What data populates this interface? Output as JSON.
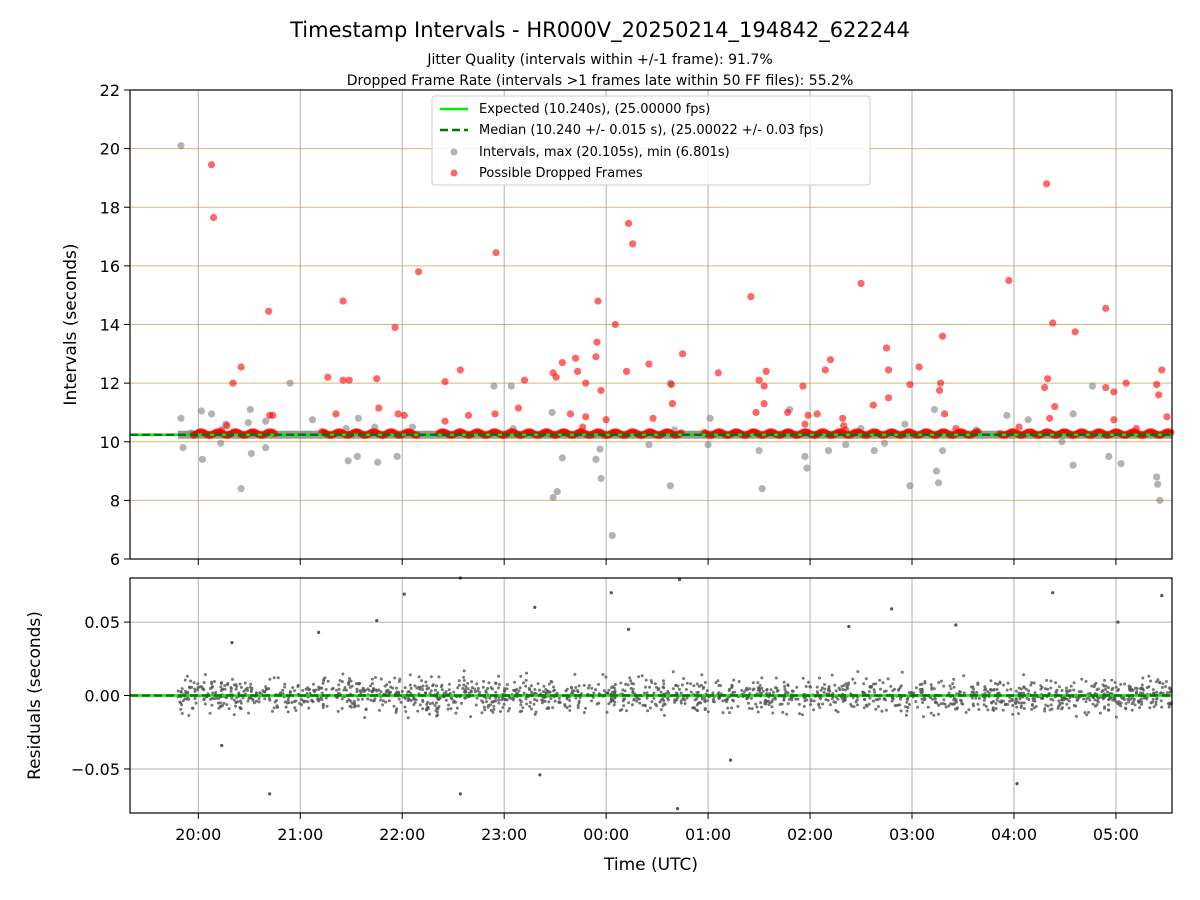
{
  "figure": {
    "title": "Timestamp Intervals - HR000V_20250214_194842_622244",
    "subtitle1": "Jitter Quality (intervals within +/-1 frame): 91.7%",
    "subtitle2": "Dropped Frame Rate (intervals >1 frames late within 50 FF files): 55.2%"
  },
  "colors": {
    "expected": "#00ee00",
    "median": "#007700",
    "intervals": "#808080",
    "dropped": "#ff0000",
    "hgrid": "#c8a850",
    "vgrid": "#b0b0b0",
    "residuals": "#555555"
  },
  "legend": {
    "expected": "Expected (10.240s), (25.00000 fps)",
    "median": "Median (10.240 +/- 0.015 s), (25.00022 +/- 0.03 fps)",
    "intervals": "Intervals, max (20.105s), min (6.801s)",
    "dropped": "Possible Dropped Frames"
  },
  "chart_data": [
    {
      "type": "scatter",
      "ylabel": "Intervals (seconds)",
      "ylim": [
        6,
        22
      ],
      "yticks": [
        "6",
        "8",
        "10",
        "12",
        "14",
        "16",
        "18",
        "20",
        "22"
      ],
      "xlim_hours": [
        19.33,
        29.55
      ],
      "xtick_hours": [
        20,
        21,
        22,
        23,
        24,
        25,
        26,
        27,
        28,
        29
      ],
      "grid": true,
      "legend_placement": "top-center",
      "expected": 10.24,
      "median": 10.24,
      "series": [
        {
          "name": "Intervals, max (20.105s), min (6.801s)",
          "points": [
            [
              19.83,
              20.1
            ],
            [
              19.83,
              10.8
            ],
            [
              19.85,
              9.8
            ],
            [
              19.93,
              10.3
            ],
            [
              20.03,
              11.05
            ],
            [
              20.04,
              9.4
            ],
            [
              20.13,
              10.95
            ],
            [
              20.22,
              9.95
            ],
            [
              20.27,
              10.6
            ],
            [
              20.42,
              8.4
            ],
            [
              20.49,
              10.65
            ],
            [
              20.51,
              11.1
            ],
            [
              20.52,
              9.6
            ],
            [
              20.66,
              10.7
            ],
            [
              20.66,
              9.8
            ],
            [
              20.9,
              12.0
            ],
            [
              21.12,
              10.75
            ],
            [
              21.45,
              10.45
            ],
            [
              21.47,
              9.35
            ],
            [
              21.57,
              10.8
            ],
            [
              21.56,
              9.5
            ],
            [
              21.73,
              10.5
            ],
            [
              21.76,
              9.3
            ],
            [
              21.95,
              9.5
            ],
            [
              22.1,
              10.5
            ],
            [
              22.9,
              11.9
            ],
            [
              23.07,
              11.9
            ],
            [
              23.09,
              10.45
            ],
            [
              23.47,
              11.0
            ],
            [
              23.48,
              8.1
            ],
            [
              23.52,
              8.3
            ],
            [
              23.57,
              9.45
            ],
            [
              23.9,
              9.4
            ],
            [
              23.95,
              8.75
            ],
            [
              23.94,
              9.75
            ],
            [
              24.06,
              6.8
            ],
            [
              24.42,
              9.9
            ],
            [
              24.63,
              12.0
            ],
            [
              24.63,
              8.5
            ],
            [
              24.67,
              10.4
            ],
            [
              25.02,
              10.8
            ],
            [
              25.0,
              9.9
            ],
            [
              25.5,
              9.7
            ],
            [
              25.53,
              8.4
            ],
            [
              25.8,
              11.1
            ],
            [
              25.95,
              9.5
            ],
            [
              25.97,
              9.1
            ],
            [
              26.18,
              9.7
            ],
            [
              26.27,
              10.3
            ],
            [
              26.35,
              9.9
            ],
            [
              26.5,
              10.45
            ],
            [
              26.63,
              9.7
            ],
            [
              26.73,
              9.95
            ],
            [
              26.93,
              10.6
            ],
            [
              26.98,
              8.5
            ],
            [
              27.22,
              11.1
            ],
            [
              27.24,
              9.0
            ],
            [
              27.26,
              8.6
            ],
            [
              27.3,
              9.7
            ],
            [
              27.63,
              10.4
            ],
            [
              27.93,
              10.9
            ],
            [
              28.14,
              10.75
            ],
            [
              28.47,
              10.0
            ],
            [
              28.58,
              10.95
            ],
            [
              28.58,
              9.2
            ],
            [
              28.77,
              11.9
            ],
            [
              28.93,
              9.5
            ],
            [
              29.05,
              9.25
            ],
            [
              29.4,
              8.8
            ],
            [
              29.41,
              8.55
            ],
            [
              29.43,
              8.0
            ]
          ]
        },
        {
          "name": "Possible Dropped Frames",
          "points": [
            [
              20.13,
              19.45
            ],
            [
              20.15,
              17.65
            ],
            [
              20.23,
              10.4
            ],
            [
              20.28,
              10.55
            ],
            [
              20.34,
              12.0
            ],
            [
              20.42,
              12.55
            ],
            [
              20.69,
              14.45
            ],
            [
              20.7,
              10.9
            ],
            [
              20.73,
              10.9
            ],
            [
              21.27,
              12.2
            ],
            [
              21.35,
              10.95
            ],
            [
              21.42,
              14.8
            ],
            [
              21.42,
              12.1
            ],
            [
              21.48,
              12.1
            ],
            [
              21.75,
              12.15
            ],
            [
              21.77,
              11.15
            ],
            [
              21.93,
              13.9
            ],
            [
              21.96,
              10.95
            ],
            [
              22.02,
              10.9
            ],
            [
              22.16,
              15.8
            ],
            [
              22.42,
              12.05
            ],
            [
              22.42,
              10.7
            ],
            [
              22.57,
              12.45
            ],
            [
              22.65,
              10.9
            ],
            [
              22.91,
              10.95
            ],
            [
              22.92,
              16.45
            ],
            [
              23.14,
              11.15
            ],
            [
              23.2,
              12.1
            ],
            [
              23.48,
              12.35
            ],
            [
              23.51,
              12.2
            ],
            [
              23.57,
              12.7
            ],
            [
              23.65,
              10.95
            ],
            [
              23.7,
              12.85
            ],
            [
              23.72,
              12.4
            ],
            [
              23.77,
              10.5
            ],
            [
              23.8,
              12.0
            ],
            [
              23.8,
              10.85
            ],
            [
              23.9,
              12.9
            ],
            [
              23.91,
              13.4
            ],
            [
              23.92,
              14.8
            ],
            [
              23.95,
              11.75
            ],
            [
              24.0,
              10.75
            ],
            [
              24.09,
              14.0
            ],
            [
              24.22,
              17.45
            ],
            [
              24.2,
              12.4
            ],
            [
              24.26,
              16.75
            ],
            [
              24.42,
              12.65
            ],
            [
              24.46,
              10.8
            ],
            [
              24.64,
              11.95
            ],
            [
              24.65,
              11.3
            ],
            [
              24.75,
              13.0
            ],
            [
              25.1,
              12.35
            ],
            [
              25.42,
              14.95
            ],
            [
              25.47,
              11.0
            ],
            [
              25.5,
              12.1
            ],
            [
              25.55,
              11.9
            ],
            [
              25.55,
              11.3
            ],
            [
              25.57,
              12.4
            ],
            [
              25.78,
              11.0
            ],
            [
              25.93,
              11.9
            ],
            [
              25.95,
              10.6
            ],
            [
              25.98,
              10.9
            ],
            [
              26.07,
              10.95
            ],
            [
              26.15,
              12.45
            ],
            [
              26.2,
              12.8
            ],
            [
              26.32,
              10.8
            ],
            [
              26.33,
              10.55
            ],
            [
              26.35,
              10.4
            ],
            [
              26.5,
              15.4
            ],
            [
              26.62,
              11.25
            ],
            [
              26.75,
              13.2
            ],
            [
              26.77,
              12.45
            ],
            [
              26.77,
              11.5
            ],
            [
              26.98,
              11.95
            ],
            [
              27.07,
              12.55
            ],
            [
              27.27,
              11.75
            ],
            [
              27.28,
              12.0
            ],
            [
              27.3,
              13.6
            ],
            [
              27.32,
              10.95
            ],
            [
              27.43,
              10.45
            ],
            [
              27.95,
              15.5
            ],
            [
              28.05,
              10.5
            ],
            [
              28.3,
              11.85
            ],
            [
              28.33,
              12.15
            ],
            [
              28.32,
              18.8
            ],
            [
              28.35,
              10.8
            ],
            [
              28.38,
              14.05
            ],
            [
              28.4,
              11.2
            ],
            [
              28.6,
              13.75
            ],
            [
              28.9,
              14.55
            ],
            [
              28.9,
              11.85
            ],
            [
              28.98,
              11.7
            ],
            [
              28.98,
              10.75
            ],
            [
              29.1,
              12.0
            ],
            [
              29.2,
              10.45
            ],
            [
              29.4,
              11.95
            ],
            [
              29.42,
              11.6
            ],
            [
              29.45,
              12.45
            ],
            [
              29.5,
              10.85
            ]
          ]
        }
      ]
    },
    {
      "type": "scatter",
      "xlabel": "Time (UTC)",
      "ylabel": "Residuals (seconds)",
      "ylim": [
        -0.08,
        0.08
      ],
      "yticks": [
        "−0.05",
        "0.00",
        "0.05"
      ],
      "ytick_values": [
        -0.05,
        0.0,
        0.05
      ],
      "xticklabels": [
        "20:00",
        "21:00",
        "22:00",
        "23:00",
        "00:00",
        "01:00",
        "02:00",
        "03:00",
        "04:00",
        "05:00"
      ],
      "xlim_hours": [
        19.33,
        29.55
      ],
      "grid": true,
      "x_range_hours": [
        19.8,
        29.55
      ],
      "spread_seconds": 0.015,
      "notable_points": [
        [
          20.7,
          -0.067
        ],
        [
          21.18,
          0.043
        ],
        [
          21.75,
          0.051
        ],
        [
          22.02,
          0.069
        ],
        [
          22.57,
          -0.067
        ],
        [
          22.57,
          0.08
        ],
        [
          23.3,
          0.06
        ],
        [
          23.35,
          -0.054
        ],
        [
          24.05,
          0.07
        ],
        [
          24.22,
          0.045
        ],
        [
          24.7,
          -0.077
        ],
        [
          24.72,
          0.079
        ],
        [
          25.22,
          -0.044
        ],
        [
          26.38,
          0.047
        ],
        [
          26.8,
          0.059
        ],
        [
          27.43,
          0.048
        ],
        [
          28.03,
          -0.06
        ],
        [
          28.38,
          0.07
        ],
        [
          29.02,
          0.05
        ],
        [
          29.45,
          0.068
        ],
        [
          20.23,
          -0.034
        ],
        [
          20.33,
          0.036
        ]
      ]
    }
  ]
}
